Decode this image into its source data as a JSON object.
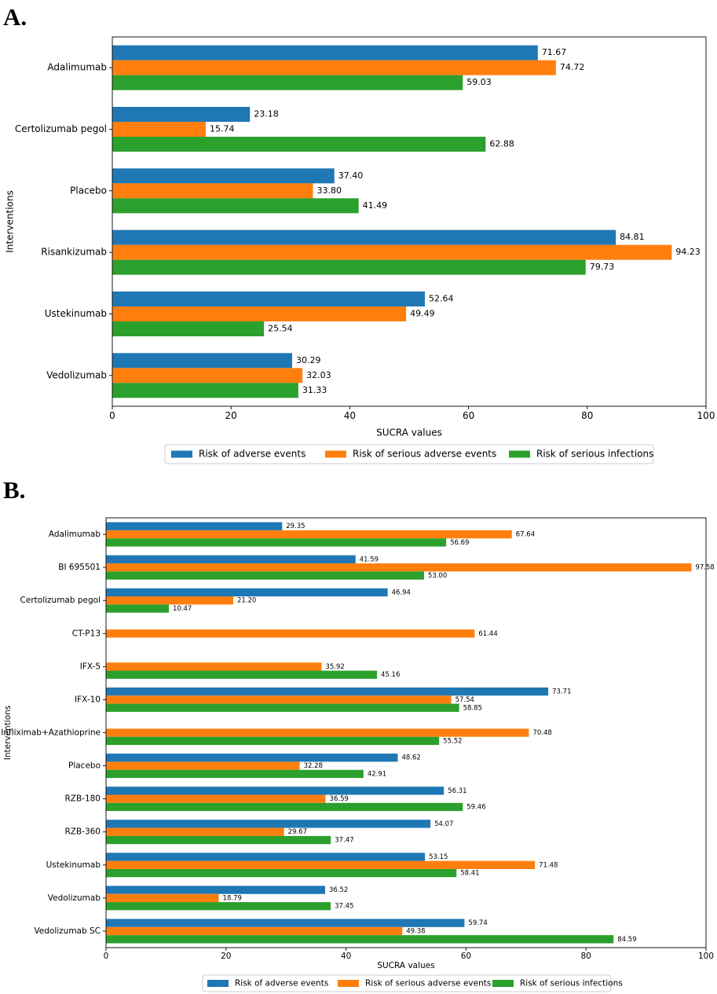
{
  "panels": [
    {
      "letter": "A.",
      "chart_data": {
        "type": "bar",
        "orientation": "horizontal",
        "title": "",
        "xlabel": "SUCRA values",
        "ylabel": "Interventions",
        "xlim": [
          0,
          100
        ],
        "xticks": [
          0,
          20,
          40,
          60,
          80,
          100
        ],
        "grid": false,
        "legend_position": "bottom-center",
        "categories": [
          "Adalimumab",
          "Certolizumab pegol",
          "Placebo",
          "Risankizumab",
          "Ustekinumab",
          "Vedolizumab"
        ],
        "series": [
          {
            "name": "Risk of adverse events",
            "color": "#1f77b4",
            "values": [
              71.67,
              23.18,
              37.4,
              84.81,
              52.64,
              30.29
            ],
            "labels": [
              "71.67",
              "23.18",
              "37.40",
              "84.81",
              "52.64",
              "30.29"
            ]
          },
          {
            "name": "Risk of serious adverse events",
            "color": "#ff7f0e",
            "values": [
              74.72,
              15.74,
              33.8,
              94.23,
              49.49,
              32.03
            ],
            "labels": [
              "74.72",
              "15.74",
              "33.80",
              "94.23",
              "49.49",
              "32.03"
            ]
          },
          {
            "name": "Risk of serious infections",
            "color": "#2ca02c",
            "values": [
              59.03,
              62.88,
              41.49,
              79.73,
              25.54,
              31.33
            ],
            "labels": [
              "59.03",
              "62.88",
              "41.49",
              "79.73",
              "25.54",
              "31.33"
            ]
          }
        ]
      }
    },
    {
      "letter": "B.",
      "chart_data": {
        "type": "bar",
        "orientation": "horizontal",
        "title": "",
        "xlabel": "SUCRA values",
        "ylabel": "Interventions",
        "xlim": [
          0,
          100
        ],
        "xticks": [
          0,
          20,
          40,
          60,
          80,
          100
        ],
        "grid": false,
        "legend_position": "bottom-center",
        "categories": [
          "Adalimumab",
          "BI 695501",
          "Certolizumab pegol",
          "CT-P13",
          "IFX-5",
          "IFX-10",
          "Infliximab+Azathioprine",
          "Placebo",
          "RZB-180",
          "RZB-360",
          "Ustekinumab",
          "Vedolizumab",
          "Vedolizumab SC"
        ],
        "series": [
          {
            "name": "Risk of adverse events",
            "color": "#1f77b4",
            "values": [
              29.35,
              41.59,
              46.94,
              null,
              null,
              73.71,
              null,
              48.62,
              56.31,
              54.07,
              53.15,
              36.52,
              59.74
            ],
            "labels": [
              "29.35",
              "41.59",
              "46.94",
              null,
              null,
              "73.71",
              null,
              "48.62",
              "56.31",
              "54.07",
              "53.15",
              "36.52",
              "59.74"
            ]
          },
          {
            "name": "Risk of serious adverse events",
            "color": "#ff7f0e",
            "values": [
              67.64,
              97.58,
              21.2,
              61.44,
              35.92,
              57.54,
              70.48,
              32.28,
              36.59,
              29.67,
              71.48,
              18.79,
              49.38
            ],
            "labels": [
              "67.64",
              "97.58",
              "21.20",
              "61.44",
              "35.92",
              "57.54",
              "70.48",
              "32.28",
              "36.59",
              "29.67",
              "71.48",
              "18.79",
              "49.38"
            ]
          },
          {
            "name": "Risk of serious infections",
            "color": "#2ca02c",
            "values": [
              56.69,
              53.0,
              10.47,
              null,
              45.16,
              58.85,
              55.52,
              42.91,
              59.46,
              37.47,
              58.41,
              37.45,
              84.59
            ],
            "labels": [
              "56.69",
              "53.00",
              "10.47",
              null,
              "45.16",
              "58.85",
              "55.52",
              "42.91",
              "59.46",
              "37.47",
              "58.41",
              "37.45",
              "84.59"
            ]
          }
        ]
      }
    }
  ]
}
